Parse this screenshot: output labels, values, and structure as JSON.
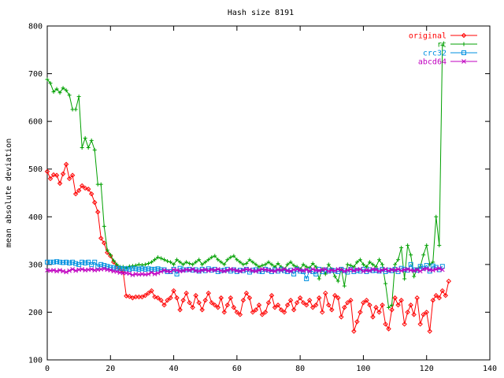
{
  "chart_data": {
    "type": "line",
    "title": "Hash size 8191",
    "xlabel": "",
    "ylabel": "mean absolute deviation",
    "xlim": [
      0,
      140
    ],
    "ylim": [
      100,
      800
    ],
    "x_ticks": [
      "0",
      "20",
      "40",
      "60",
      "80",
      "100",
      "120",
      "140"
    ],
    "y_ticks": [
      "100",
      "200",
      "300",
      "400",
      "500",
      "600",
      "700",
      "800"
    ],
    "grid": false,
    "legend_position": "top-right",
    "series": [
      {
        "name": "original",
        "color": "#ff0000",
        "marker": "diamond",
        "values": [
          495,
          480,
          488,
          487,
          470,
          490,
          510,
          480,
          487,
          448,
          455,
          465,
          460,
          458,
          448,
          430,
          410,
          355,
          345,
          325,
          318,
          305,
          295,
          287,
          285,
          234,
          233,
          230,
          232,
          232,
          232,
          235,
          240,
          245,
          232,
          230,
          225,
          215,
          225,
          230,
          245,
          230,
          205,
          225,
          240,
          220,
          210,
          235,
          220,
          205,
          225,
          240,
          220,
          215,
          210,
          230,
          200,
          215,
          230,
          210,
          200,
          195,
          225,
          240,
          230,
          200,
          205,
          215,
          195,
          200,
          220,
          235,
          210,
          215,
          205,
          200,
          215,
          225,
          205,
          220,
          230,
          220,
          215,
          225,
          210,
          215,
          230,
          200,
          240,
          215,
          205,
          235,
          230,
          190,
          210,
          220,
          225,
          160,
          180,
          200,
          220,
          225,
          215,
          190,
          210,
          200,
          215,
          175,
          165,
          205,
          230,
          215,
          225,
          175,
          200,
          215,
          195,
          230,
          175,
          195,
          200,
          160,
          225,
          235,
          230,
          245,
          235,
          265
        ]
      },
      {
        "name": "rt",
        "color": "#00a000",
        "marker": "plus",
        "values": [
          688,
          680,
          662,
          668,
          660,
          670,
          665,
          655,
          625,
          625,
          652,
          545,
          565,
          545,
          560,
          540,
          468,
          468,
          380,
          330,
          320,
          308,
          300,
          295,
          295,
          293,
          296,
          297,
          298,
          300,
          299,
          300,
          302,
          305,
          310,
          315,
          313,
          310,
          307,
          305,
          300,
          310,
          305,
          300,
          305,
          302,
          300,
          305,
          310,
          300,
          305,
          310,
          315,
          318,
          310,
          305,
          300,
          310,
          315,
          318,
          310,
          305,
          300,
          302,
          310,
          305,
          300,
          295,
          298,
          300,
          305,
          300,
          295,
          302,
          295,
          290,
          300,
          305,
          298,
          295,
          290,
          300,
          295,
          293,
          302,
          295,
          270,
          290,
          280,
          300,
          290,
          275,
          265,
          290,
          255,
          300,
          298,
          295,
          305,
          310,
          300,
          295,
          305,
          300,
          295,
          310,
          300,
          260,
          210,
          215,
          300,
          310,
          335,
          270,
          340,
          320,
          275,
          290,
          295,
          320,
          340,
          300,
          305,
          400,
          340,
          760
        ]
      },
      {
        "name": "crc32",
        "color": "#0090e0",
        "marker": "square",
        "values": [
          305,
          305,
          305,
          306,
          305,
          304,
          305,
          303,
          305,
          302,
          300,
          305,
          303,
          305,
          300,
          305,
          296,
          300,
          298,
          296,
          294,
          293,
          292,
          292,
          291,
          291,
          290,
          292,
          291,
          290,
          292,
          290,
          291,
          290,
          290,
          291,
          289,
          289,
          285,
          285,
          290,
          280,
          292,
          289,
          289,
          290,
          288,
          289,
          286,
          290,
          287,
          291,
          288,
          290,
          285,
          287,
          288,
          290,
          286,
          289,
          285,
          288,
          287,
          290,
          284,
          288,
          289,
          286,
          285,
          290,
          288,
          285,
          289,
          286,
          290,
          287,
          285,
          288,
          280,
          290,
          286,
          285,
          270,
          288,
          285,
          280,
          290,
          285,
          289,
          286,
          288,
          287,
          285,
          290,
          287,
          284,
          290,
          285,
          288,
          286,
          290,
          285,
          289,
          287,
          288,
          286,
          290,
          285,
          288,
          287,
          290,
          285,
          292,
          290,
          288,
          300,
          289,
          288,
          296,
          292,
          298,
          286,
          297,
          294,
          289,
          296
        ]
      },
      {
        "name": "abcd64",
        "color": "#c000c0",
        "marker": "cross",
        "values": [
          288,
          287,
          288,
          286,
          288,
          286,
          284,
          287,
          290,
          287,
          289,
          290,
          288,
          289,
          290,
          288,
          289,
          290,
          291,
          289,
          288,
          286,
          285,
          283,
          282,
          282,
          281,
          278,
          280,
          279,
          280,
          279,
          280,
          283,
          280,
          282,
          285,
          288,
          286,
          285,
          289,
          288,
          286,
          287,
          289,
          288,
          290,
          287,
          286,
          288,
          289,
          287,
          289,
          288,
          290,
          287,
          286,
          288,
          290,
          289,
          287,
          286,
          288,
          290,
          289,
          287,
          286,
          288,
          290,
          289,
          288,
          287,
          286,
          289,
          288,
          290,
          287,
          286,
          289,
          290,
          288,
          287,
          289,
          286,
          290,
          288,
          287,
          289,
          290,
          286,
          288,
          287,
          290,
          289,
          286,
          288,
          290,
          287,
          289,
          290,
          286,
          288,
          287,
          290,
          289,
          286,
          288,
          290,
          287,
          289,
          288,
          290,
          287,
          289,
          290,
          288,
          287,
          289,
          286,
          290,
          291,
          289,
          288,
          290,
          292,
          289
        ]
      }
    ]
  }
}
